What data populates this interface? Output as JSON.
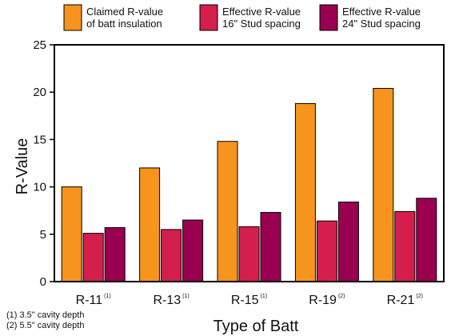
{
  "chart_data": {
    "type": "bar",
    "title": "",
    "xlabel": "Type of Batt",
    "ylabel": "R-Value",
    "ylim": [
      0,
      25
    ],
    "yticks": [
      0,
      5,
      10,
      15,
      20,
      25
    ],
    "grid": false,
    "legend_position": "top",
    "categories": [
      "R-11",
      "R-13",
      "R-15",
      "R-19",
      "R-21"
    ],
    "category_notes": [
      "(1)",
      "(1)",
      "(1)",
      "(2)",
      "(2)"
    ],
    "series": [
      {
        "name": "Claimed R-value of batt insulation",
        "legend_lines": [
          "Claimed R-value",
          "of batt insulation"
        ],
        "color": "#f7941d",
        "values": [
          10,
          12,
          14.8,
          18.8,
          20.4
        ]
      },
      {
        "name": "Effective R-value 16\" Stud spacing",
        "legend_lines": [
          "Effective R-value",
          "16\" Stud spacing"
        ],
        "color": "#d41e4c",
        "values": [
          5.1,
          5.5,
          5.8,
          6.4,
          7.4
        ]
      },
      {
        "name": "Effective R-value 24\" Stud spacing",
        "legend_lines": [
          "Effective R-value",
          "24\" Stud spacing"
        ],
        "color": "#990050",
        "values": [
          5.7,
          6.5,
          7.3,
          8.4,
          8.8
        ]
      }
    ]
  },
  "footnotes": [
    "(1) 3.5\" cavity depth",
    "(2) 5.5\" cavity depth"
  ]
}
